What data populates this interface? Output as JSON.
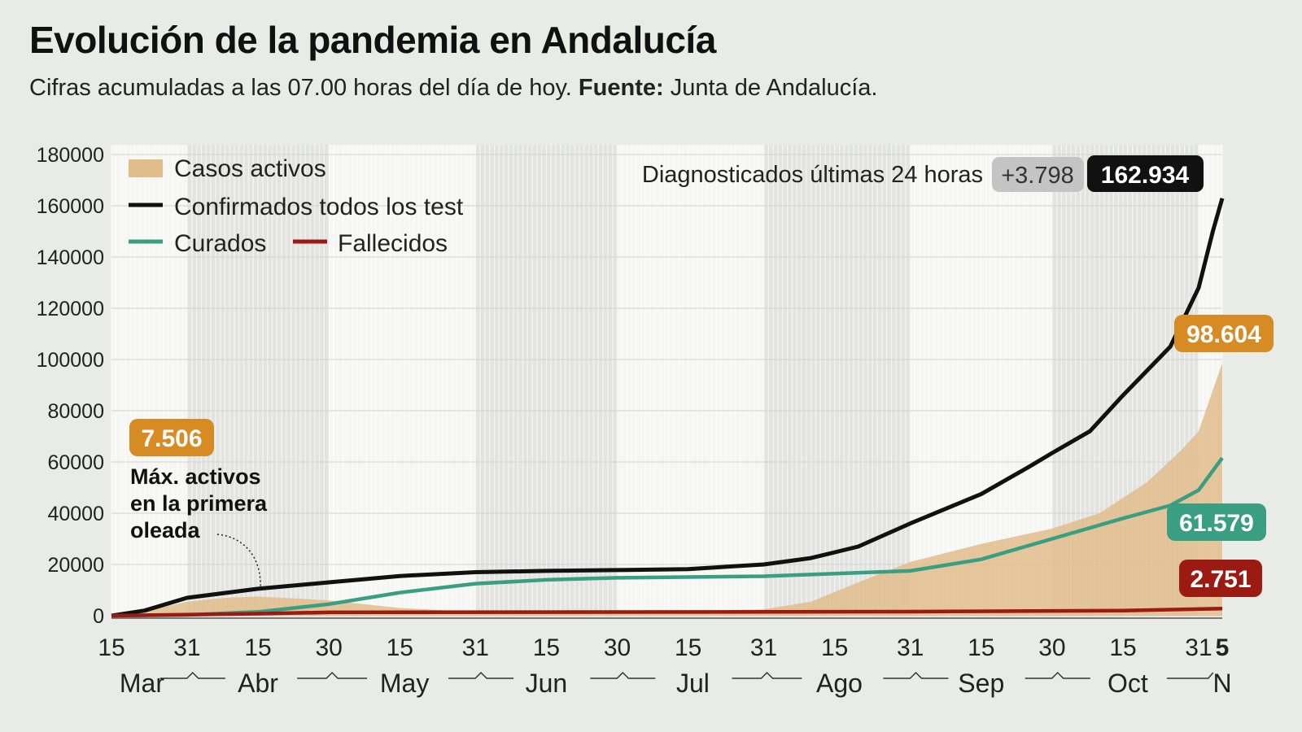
{
  "header": {
    "title": "Evolución de la pandemia en Andalucía",
    "subtitle_text": "Cifras acumuladas a las 07.00 horas del día de hoy.",
    "source_label": "Fuente:",
    "source_value": "Junta de Andalucía."
  },
  "chart_data": {
    "type": "line",
    "xlabel": "",
    "ylabel": "",
    "x_range": [
      "2020-03-15",
      "2020-11-05"
    ],
    "ylim": [
      0,
      180000
    ],
    "y_ticks": [
      "0",
      "20000",
      "40000",
      "60000",
      "80000",
      "100000",
      "120000",
      "140000",
      "160000",
      "180000"
    ],
    "x_ticks": [
      {
        "date": "2020-03-15",
        "label": "15"
      },
      {
        "date": "2020-03-31",
        "label": "31"
      },
      {
        "date": "2020-04-15",
        "label": "15"
      },
      {
        "date": "2020-04-30",
        "label": "30"
      },
      {
        "date": "2020-05-15",
        "label": "15"
      },
      {
        "date": "2020-05-31",
        "label": "31"
      },
      {
        "date": "2020-06-15",
        "label": "15"
      },
      {
        "date": "2020-06-30",
        "label": "30"
      },
      {
        "date": "2020-07-15",
        "label": "15"
      },
      {
        "date": "2020-07-31",
        "label": "31"
      },
      {
        "date": "2020-08-15",
        "label": "15"
      },
      {
        "date": "2020-08-31",
        "label": "31"
      },
      {
        "date": "2020-09-15",
        "label": "15"
      },
      {
        "date": "2020-09-30",
        "label": "30"
      },
      {
        "date": "2020-10-15",
        "label": "15"
      },
      {
        "date": "2020-10-31",
        "label": "31"
      },
      {
        "date": "2020-11-05",
        "label": "5"
      }
    ],
    "months": [
      {
        "date": "2020-03-18",
        "label": "Mar"
      },
      {
        "date": "2020-04-15",
        "label": "Abr"
      },
      {
        "date": "2020-05-16",
        "label": "May"
      },
      {
        "date": "2020-06-15",
        "label": "Jun"
      },
      {
        "date": "2020-07-16",
        "label": "Jul"
      },
      {
        "date": "2020-08-16",
        "label": "Ago"
      },
      {
        "date": "2020-09-15",
        "label": "Sep"
      },
      {
        "date": "2020-10-16",
        "label": "Oct"
      },
      {
        "date": "2020-11-05",
        "label": "N"
      }
    ],
    "shaded_months": [
      [
        "2020-03-31",
        "2020-04-30"
      ],
      [
        "2020-05-31",
        "2020-06-30"
      ],
      [
        "2020-07-31",
        "2020-08-31"
      ],
      [
        "2020-09-30",
        "2020-10-31"
      ]
    ],
    "grid": true,
    "legend_placement": "top-left",
    "colors": {
      "activos": "#e2bd8c",
      "activos_label": "#d68c22",
      "confirmados": "#111111",
      "curados": "#3a9e82",
      "fallecidos": "#9b1a12",
      "increment": "#c4c4c4"
    },
    "series": [
      {
        "name": "Casos activos",
        "kind": "area",
        "points": [
          [
            "2020-03-15",
            0
          ],
          [
            "2020-03-22",
            1800
          ],
          [
            "2020-03-31",
            5500
          ],
          [
            "2020-04-08",
            7000
          ],
          [
            "2020-04-15",
            7506
          ],
          [
            "2020-04-30",
            6000
          ],
          [
            "2020-05-15",
            3000
          ],
          [
            "2020-05-31",
            1500
          ],
          [
            "2020-06-30",
            1000
          ],
          [
            "2020-07-31",
            2500
          ],
          [
            "2020-08-10",
            5500
          ],
          [
            "2020-08-20",
            13000
          ],
          [
            "2020-08-31",
            21000
          ],
          [
            "2020-09-15",
            28000
          ],
          [
            "2020-09-30",
            34000
          ],
          [
            "2020-10-10",
            40000
          ],
          [
            "2020-10-20",
            52000
          ],
          [
            "2020-10-27",
            64000
          ],
          [
            "2020-10-31",
            72000
          ],
          [
            "2020-11-03",
            88000
          ],
          [
            "2020-11-05",
            98604
          ]
        ]
      },
      {
        "name": "Confirmados todos los test",
        "kind": "line",
        "points": [
          [
            "2020-03-15",
            0
          ],
          [
            "2020-03-22",
            2000
          ],
          [
            "2020-03-31",
            7000
          ],
          [
            "2020-04-15",
            10500
          ],
          [
            "2020-04-30",
            13000
          ],
          [
            "2020-05-15",
            15500
          ],
          [
            "2020-05-31",
            17000
          ],
          [
            "2020-06-15",
            17500
          ],
          [
            "2020-06-30",
            17800
          ],
          [
            "2020-07-15",
            18200
          ],
          [
            "2020-07-31",
            20000
          ],
          [
            "2020-08-10",
            22500
          ],
          [
            "2020-08-20",
            27000
          ],
          [
            "2020-08-31",
            36000
          ],
          [
            "2020-09-15",
            47500
          ],
          [
            "2020-09-25",
            58000
          ],
          [
            "2020-09-30",
            63500
          ],
          [
            "2020-10-08",
            72000
          ],
          [
            "2020-10-15",
            86000
          ],
          [
            "2020-10-25",
            105000
          ],
          [
            "2020-10-31",
            128000
          ],
          [
            "2020-11-03",
            150000
          ],
          [
            "2020-11-05",
            162934
          ]
        ]
      },
      {
        "name": "Curados",
        "kind": "line",
        "points": [
          [
            "2020-03-15",
            0
          ],
          [
            "2020-03-31",
            300
          ],
          [
            "2020-04-15",
            1500
          ],
          [
            "2020-04-30",
            4500
          ],
          [
            "2020-05-15",
            9000
          ],
          [
            "2020-05-31",
            12500
          ],
          [
            "2020-06-15",
            14000
          ],
          [
            "2020-06-30",
            14800
          ],
          [
            "2020-07-31",
            15400
          ],
          [
            "2020-08-31",
            17500
          ],
          [
            "2020-09-15",
            22000
          ],
          [
            "2020-09-30",
            30000
          ],
          [
            "2020-10-15",
            38000
          ],
          [
            "2020-10-25",
            43000
          ],
          [
            "2020-10-31",
            49000
          ],
          [
            "2020-11-05",
            61579
          ]
        ]
      },
      {
        "name": "Fallecidos",
        "kind": "line",
        "points": [
          [
            "2020-03-15",
            0
          ],
          [
            "2020-04-15",
            800
          ],
          [
            "2020-04-30",
            1300
          ],
          [
            "2020-06-30",
            1420
          ],
          [
            "2020-08-31",
            1600
          ],
          [
            "2020-10-15",
            2000
          ],
          [
            "2020-11-05",
            2751
          ]
        ]
      }
    ],
    "annotations": {
      "max_activos_value": "7.506",
      "max_activos_date": "2020-04-15",
      "max_activos_text": [
        "Máx. activos",
        "en la primera",
        "oleada"
      ],
      "diagnosticados_label": "Diagnosticados últimas 24 horas",
      "diagnosticados_increment": "+3.798",
      "confirmados_value": "162.934",
      "activos_value": "98.604",
      "curados_value": "61.579",
      "fallecidos_value": "2.751"
    }
  }
}
